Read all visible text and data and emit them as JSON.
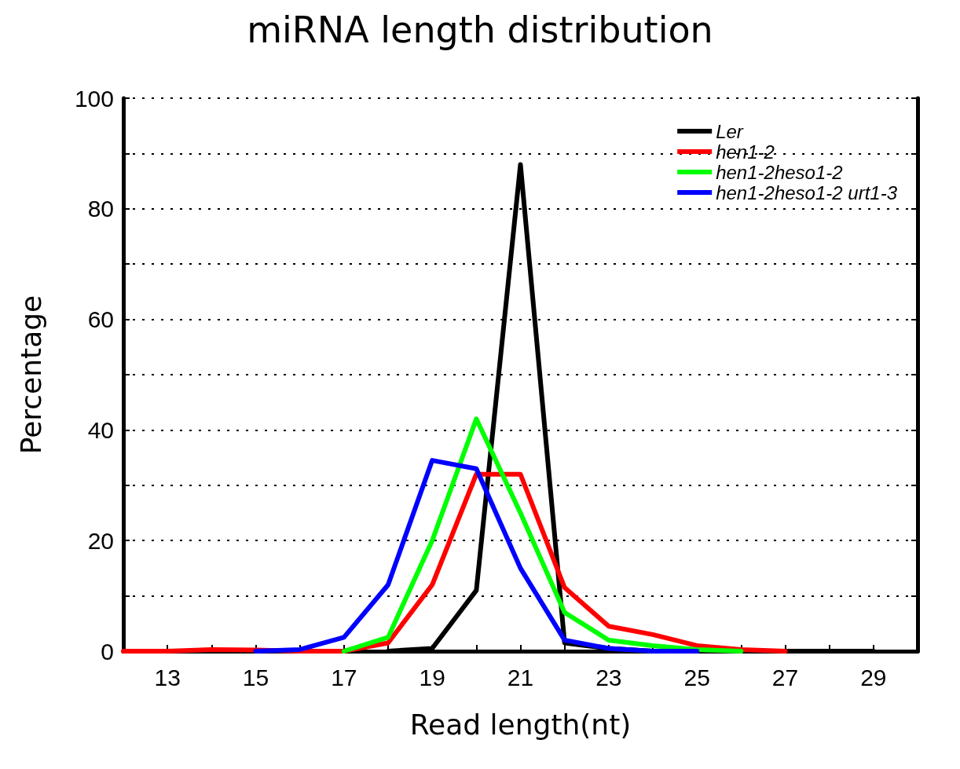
{
  "chart_data": {
    "type": "line",
    "title": "miRNA length distribution",
    "xlabel": "Read length(nt)",
    "ylabel": "Percentage",
    "xlim": [
      12,
      30
    ],
    "xticks": [
      {
        "value": 12,
        "label": null
      },
      13,
      {
        "value": 14,
        "label": null
      },
      15,
      {
        "value": 16,
        "label": null
      },
      17,
      {
        "value": 18,
        "label": null
      },
      19,
      {
        "value": 20,
        "label": null
      },
      21,
      {
        "value": 22,
        "label": null
      },
      23,
      {
        "value": 24,
        "label": null
      },
      25,
      {
        "value": 26,
        "label": null
      },
      27,
      {
        "value": 28,
        "label": null
      },
      29,
      {
        "value": 30,
        "label": null
      }
    ],
    "ylim": [
      0,
      100
    ],
    "yticks": [
      0,
      {
        "value": 10,
        "label": null
      },
      20,
      {
        "value": 30,
        "label": null
      },
      40,
      {
        "value": 50,
        "label": null
      },
      60,
      {
        "value": 70,
        "label": null
      },
      80,
      {
        "value": 90,
        "label": null
      },
      100
    ],
    "grid": "y",
    "legend": "top right",
    "marker": "none",
    "line_style": "solid",
    "series": [
      {
        "name": "Ler",
        "color": "#000000",
        "x": [
          18,
          19,
          20,
          21,
          22,
          23,
          24,
          25,
          26,
          27,
          28,
          29
        ],
        "values": [
          0,
          0.5,
          11,
          88,
          1.5,
          0.5,
          0,
          0,
          0,
          0,
          0,
          0
        ]
      },
      {
        "name": "hen1-2",
        "color": "#ff0000",
        "x": [
          12,
          13,
          14,
          15,
          16,
          17,
          18,
          19,
          20,
          21,
          22,
          23,
          24,
          25,
          26,
          27
        ],
        "values": [
          0,
          0,
          0.3,
          0.2,
          0,
          0,
          1.5,
          12,
          32,
          32,
          11.5,
          4.5,
          3,
          1,
          0.3,
          0
        ]
      },
      {
        "name": "hen1-2heso1-2",
        "color": "#00ff00",
        "x": [
          17,
          18,
          19,
          20,
          21,
          22,
          23,
          24,
          25,
          26
        ],
        "values": [
          0,
          2.5,
          20,
          42,
          25,
          7,
          2,
          1,
          0.3,
          0
        ]
      },
      {
        "name": "hen1-2heso1-2 urt1-3",
        "color": "#0000ff",
        "x": [
          15,
          16,
          17,
          18,
          19,
          20,
          21,
          22,
          23,
          24,
          25
        ],
        "values": [
          0,
          0.3,
          2.5,
          12,
          34.5,
          33,
          15,
          2,
          0.5,
          0,
          0
        ]
      }
    ]
  }
}
